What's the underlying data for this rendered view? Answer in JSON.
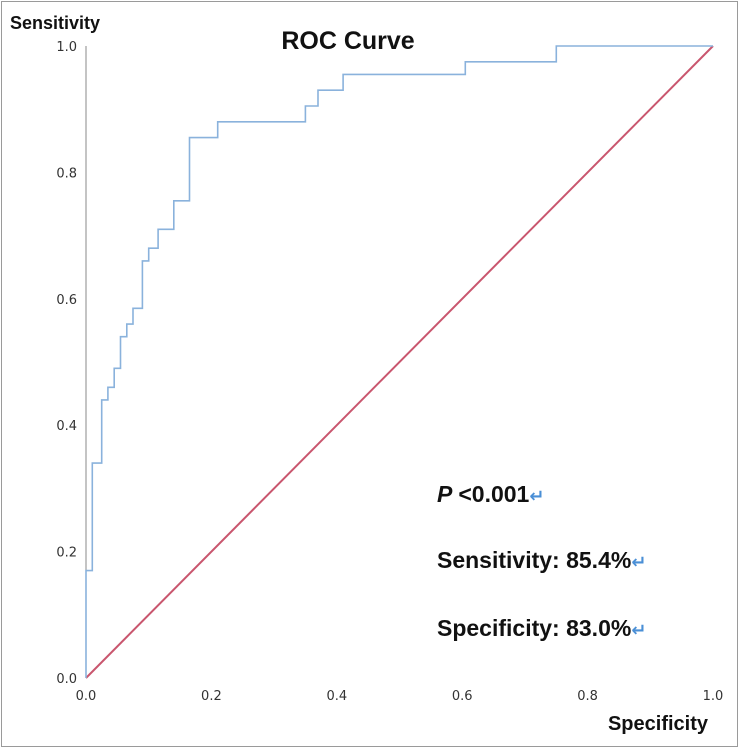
{
  "chart_data": {
    "type": "line",
    "title": "ROC Curve",
    "xlabel": "Specificity",
    "ylabel": "Sensitivity",
    "xlim": [
      0.0,
      1.0
    ],
    "ylim": [
      0.0,
      1.0
    ],
    "x_ticks": [
      "0.0",
      "0.2",
      "0.4",
      "0.6",
      "0.8",
      "1.0"
    ],
    "y_ticks": [
      "0.0",
      "0.2",
      "0.4",
      "0.6",
      "0.8",
      "1.0"
    ],
    "series": [
      {
        "name": "ROC",
        "color": "#8ab2dc",
        "points": [
          [
            0.0,
            0.0
          ],
          [
            0.0,
            0.17
          ],
          [
            0.01,
            0.17
          ],
          [
            0.01,
            0.34
          ],
          [
            0.025,
            0.34
          ],
          [
            0.025,
            0.44
          ],
          [
            0.035,
            0.44
          ],
          [
            0.035,
            0.46
          ],
          [
            0.045,
            0.46
          ],
          [
            0.045,
            0.49
          ],
          [
            0.055,
            0.49
          ],
          [
            0.055,
            0.54
          ],
          [
            0.065,
            0.54
          ],
          [
            0.065,
            0.56
          ],
          [
            0.075,
            0.56
          ],
          [
            0.075,
            0.585
          ],
          [
            0.09,
            0.585
          ],
          [
            0.09,
            0.66
          ],
          [
            0.1,
            0.66
          ],
          [
            0.1,
            0.68
          ],
          [
            0.115,
            0.68
          ],
          [
            0.115,
            0.71
          ],
          [
            0.14,
            0.71
          ],
          [
            0.14,
            0.755
          ],
          [
            0.165,
            0.755
          ],
          [
            0.165,
            0.855
          ],
          [
            0.21,
            0.855
          ],
          [
            0.21,
            0.88
          ],
          [
            0.35,
            0.88
          ],
          [
            0.35,
            0.905
          ],
          [
            0.37,
            0.905
          ],
          [
            0.37,
            0.93
          ],
          [
            0.41,
            0.93
          ],
          [
            0.41,
            0.955
          ],
          [
            0.605,
            0.955
          ],
          [
            0.605,
            0.975
          ],
          [
            0.75,
            0.975
          ],
          [
            0.75,
            1.0
          ],
          [
            1.0,
            1.0
          ]
        ]
      },
      {
        "name": "Reference line",
        "color": "#c9566e",
        "points": [
          [
            0.0,
            0.0
          ],
          [
            1.0,
            1.0
          ]
        ]
      }
    ],
    "annotations": {
      "p_label": "P",
      "p_value": "<0.001",
      "sensitivity": "Sensitivity: 85.4%",
      "specificity": "Specificity: 83.0%",
      "return_mark": "↵"
    }
  }
}
